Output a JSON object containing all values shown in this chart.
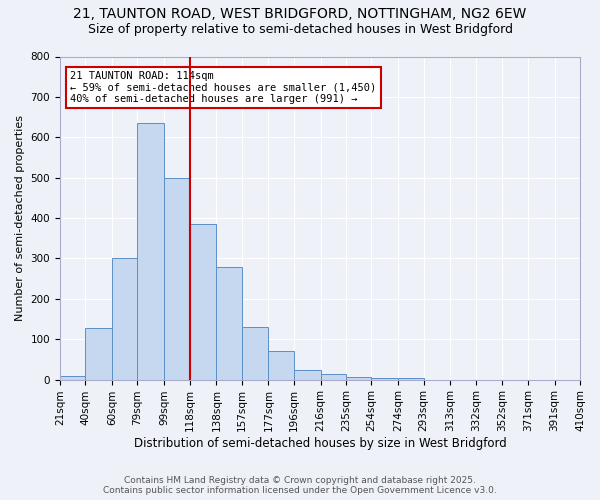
{
  "title1": "21, TAUNTON ROAD, WEST BRIDGFORD, NOTTINGHAM, NG2 6EW",
  "title2": "Size of property relative to semi-detached houses in West Bridgford",
  "bar_labels": [
    "21sqm",
    "40sqm",
    "60sqm",
    "79sqm",
    "99sqm",
    "118sqm",
    "138sqm",
    "157sqm",
    "177sqm",
    "196sqm",
    "216sqm",
    "235sqm",
    "254sqm",
    "274sqm",
    "293sqm",
    "313sqm",
    "332sqm",
    "352sqm",
    "371sqm",
    "391sqm",
    "410sqm"
  ],
  "bar_values": [
    10,
    128,
    300,
    635,
    500,
    385,
    278,
    130,
    70,
    25,
    13,
    7,
    5,
    4,
    0,
    0,
    0,
    0,
    0,
    0,
    0
  ],
  "bin_edges": [
    21,
    40,
    60,
    79,
    99,
    118,
    138,
    157,
    177,
    196,
    216,
    235,
    254,
    274,
    293,
    313,
    332,
    352,
    371,
    391,
    410
  ],
  "bar_color": "#c5d8f0",
  "bar_edge_color": "#5b8fc9",
  "vline_x": 118,
  "vline_color": "#cc0000",
  "ylabel": "Number of semi-detached properties",
  "xlabel": "Distribution of semi-detached houses by size in West Bridgford",
  "ylim": [
    0,
    800
  ],
  "yticks": [
    0,
    100,
    200,
    300,
    400,
    500,
    600,
    700,
    800
  ],
  "annotation_title": "21 TAUNTON ROAD: 114sqm",
  "annotation_line1": "← 59% of semi-detached houses are smaller (1,450)",
  "annotation_line2": "40% of semi-detached houses are larger (991) →",
  "annotation_box_color": "#ffffff",
  "annotation_box_edge": "#cc0000",
  "footer1": "Contains HM Land Registry data © Crown copyright and database right 2025.",
  "footer2": "Contains public sector information licensed under the Open Government Licence v3.0.",
  "bg_color": "#eef2f8",
  "grid_color": "#ffffff",
  "title_fontsize": 10,
  "subtitle_fontsize": 9,
  "tick_label_fontsize": 7.5
}
